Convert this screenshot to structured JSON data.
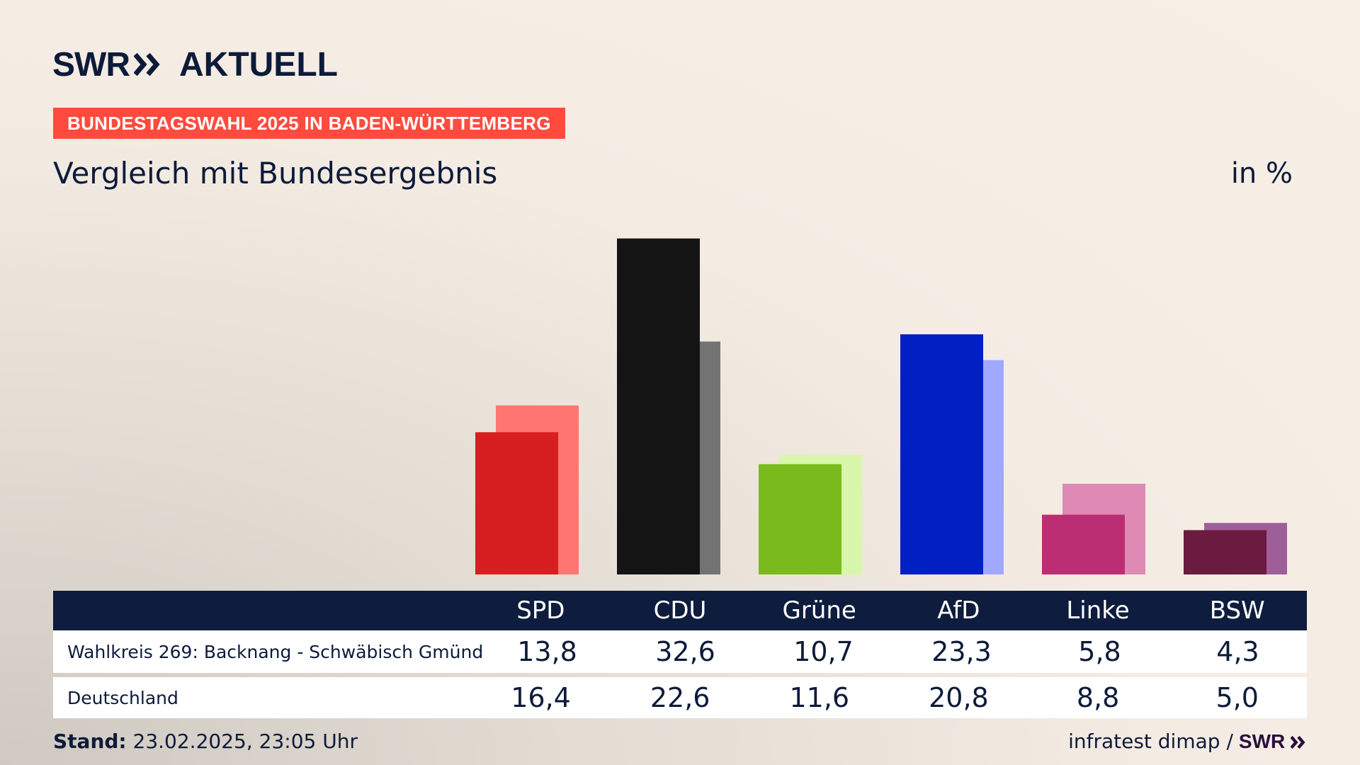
{
  "brand": {
    "logo_swr": "SWR",
    "logo_name": "AKTUELL",
    "footer_logo": "SWR"
  },
  "tag": "BUNDESTAGSWAHL 2025 IN BADEN-WÜRTTEMBERG",
  "title": "Vergleich mit Bundesergebnis",
  "unit": "in %",
  "chart_data": {
    "type": "bar",
    "categories": [
      "SPD",
      "CDU",
      "Grüne",
      "AfD",
      "Linke",
      "BSW"
    ],
    "series": [
      {
        "name": "Wahlkreis 269: Backnang - Schwäbisch Gmünd",
        "values": [
          13.8,
          32.6,
          10.7,
          23.3,
          5.8,
          4.3
        ]
      },
      {
        "name": "Deutschland",
        "values": [
          16.4,
          22.6,
          11.6,
          20.8,
          8.8,
          5.0
        ]
      }
    ],
    "colors_primary": [
      "#d71f21",
      "#141414",
      "#7aba1c",
      "#0020c4",
      "#bc2e73",
      "#6b1a40"
    ],
    "colors_secondary": [
      "#ff7570",
      "#737373",
      "#d8f7ab",
      "#a1a8ff",
      "#de8ab4",
      "#9e5e99"
    ]
  },
  "table": {
    "rows": [
      {
        "label": "Wahlkreis 269: Backnang - Schwäbisch Gmünd",
        "values": [
          "13,8",
          "32,6",
          "10,7",
          "23,3",
          "5,8",
          "4,3"
        ]
      },
      {
        "label": "Deutschland",
        "values": [
          "16,4",
          "22,6",
          "11,6",
          "20,8",
          "8,8",
          "5,0"
        ]
      }
    ]
  },
  "footer": {
    "stand_label": "Stand:",
    "stand_value": " 23.02.2025, 23:05 Uhr",
    "source": "infratest dimap /"
  }
}
